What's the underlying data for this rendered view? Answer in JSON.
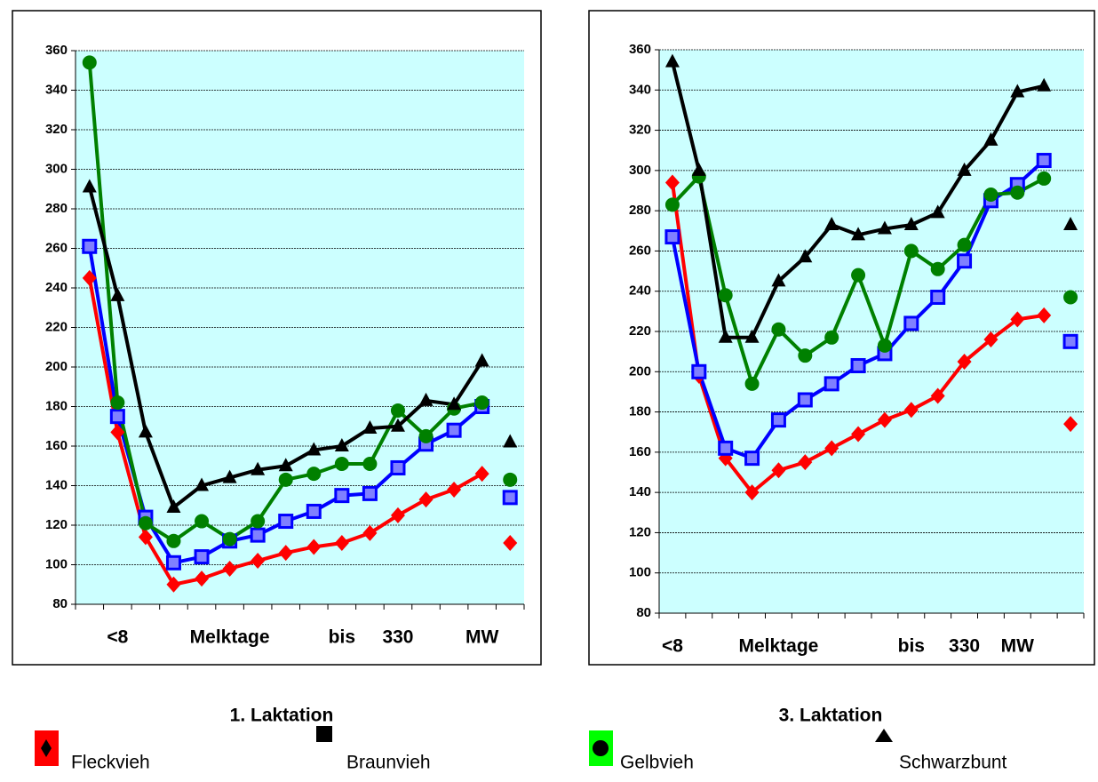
{
  "chart_data": [
    {
      "type": "line",
      "title": "1. Laktation",
      "categories": [
        null,
        "<8",
        null,
        null,
        null,
        "Melktage",
        null,
        null,
        null,
        "bis",
        null,
        "330",
        null,
        null,
        "MW",
        null
      ],
      "ylim": [
        80,
        360
      ],
      "yticks": [
        80,
        100,
        120,
        140,
        160,
        180,
        200,
        220,
        240,
        260,
        280,
        300,
        320,
        340,
        360
      ],
      "grid": true,
      "series": [
        {
          "name": "Fleckvieh",
          "color": "#ff0000",
          "marker": "diamond",
          "values": [
            245,
            167,
            114,
            90,
            93,
            98,
            102,
            106,
            109,
            111,
            116,
            125,
            133,
            138,
            146,
            111
          ]
        },
        {
          "name": "Braunvieh",
          "color": "#0000ff",
          "marker": "square",
          "values": [
            261,
            175,
            124,
            101,
            104,
            112,
            115,
            122,
            127,
            135,
            136,
            149,
            161,
            168,
            180,
            134
          ]
        },
        {
          "name": "Gelbvieh",
          "color": "#008000",
          "marker": "circle",
          "values": [
            354,
            182,
            121,
            112,
            122,
            113,
            122,
            143,
            146,
            151,
            151,
            178,
            165,
            179,
            182,
            143
          ]
        },
        {
          "name": "Schwarzbunt",
          "color": "#000000",
          "marker": "triangle",
          "values": [
            291,
            236,
            167,
            129,
            140,
            144,
            148,
            150,
            158,
            160,
            169,
            170,
            183,
            181,
            203,
            162
          ]
        }
      ]
    },
    {
      "type": "line",
      "title": "3. Laktation",
      "categories": [
        "<8",
        null,
        null,
        null,
        "Melktage",
        null,
        null,
        null,
        null,
        "bis",
        null,
        "330",
        null,
        "MW",
        null,
        null
      ],
      "ylim": [
        80,
        360
      ],
      "yticks": [
        80,
        100,
        120,
        140,
        160,
        180,
        200,
        220,
        240,
        260,
        280,
        300,
        320,
        340,
        360
      ],
      "grid": true,
      "series": [
        {
          "name": "Fleckvieh",
          "color": "#ff0000",
          "marker": "diamond",
          "values": [
            294,
            198,
            157,
            140,
            151,
            155,
            162,
            169,
            176,
            181,
            188,
            205,
            216,
            226,
            228,
            174
          ]
        },
        {
          "name": "Braunvieh",
          "color": "#0000ff",
          "marker": "square",
          "values": [
            267,
            200,
            162,
            157,
            176,
            186,
            194,
            203,
            209,
            224,
            237,
            255,
            285,
            293,
            305,
            215
          ]
        },
        {
          "name": "Gelbvieh",
          "color": "#008000",
          "marker": "circle",
          "values": [
            283,
            297,
            238,
            194,
            221,
            208,
            217,
            248,
            213,
            260,
            251,
            263,
            288,
            289,
            296,
            237
          ]
        },
        {
          "name": "Schwarzbunt",
          "color": "#000000",
          "marker": "triangle",
          "values": [
            354,
            300,
            217,
            217,
            245,
            257,
            273,
            268,
            271,
            273,
            279,
            300,
            315,
            339,
            342,
            273
          ]
        }
      ]
    }
  ]
}
